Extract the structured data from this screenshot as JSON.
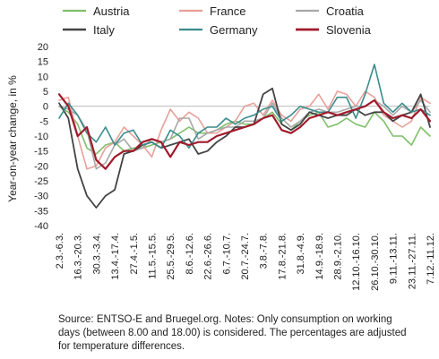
{
  "chart_data": {
    "type": "line",
    "ylabel": "Year-on-year change, in %",
    "ylim": [
      -40,
      20
    ],
    "yticks": [
      20,
      15,
      10,
      5,
      0,
      -5,
      -10,
      -15,
      -20,
      -25,
      -30,
      -35,
      -40
    ],
    "x": [
      "2.3.-6.3.",
      "9.3.-13.3.",
      "16.3.-20.3.",
      "23.3.-27.3.",
      "30.3.-3.4.",
      "6.4.-10.4.",
      "13.4.-17.4.",
      "20.4.-24.4.",
      "27.4.-1.5.",
      "4.5.-8.5.",
      "11.5.-15.5.",
      "18.5.-22.5.",
      "25.5.-29.5.",
      "1.6.-5.6.",
      "8.6.-12.6.",
      "15.6.-19.6.",
      "22.6.-26.6.",
      "29.6.-3.7.",
      "6.7.-10.7.",
      "13.7.-17.7.",
      "20.7.-24.7.",
      "27.7.-31.7.",
      "3.8.-7.8.",
      "10.8.-14.8.",
      "17.8.-21.8.",
      "24.8.-28.8.",
      "31.8.-4.9.",
      "7.9.-11.9.",
      "14.9.-18.9.",
      "21.9.-25.9.",
      "28.9.-2.10.",
      "5.10.-9.10.",
      "12.10.-16.10.",
      "19.10.-23.10.",
      "26.10.-30.10.",
      "2.11.-6.11.",
      "9.11.-13.11.",
      "16.11.-20.11.",
      "23.11.-27.11.",
      "30.11.-4.12.",
      "7.12.-11.12."
    ],
    "x_tick_labels": [
      "2.3.-6.3.",
      "16.3.-20.3.",
      "30.3.-3.4.",
      "13.4.-17.4.",
      "27.4.-1.5.",
      "11.5.-15.5.",
      "25.5.-29.5.",
      "8.6.-12.6.",
      "22.6.-26.6.",
      "6.7.-10.7.",
      "20.7.-24.7.",
      "3.8.-7.8.",
      "17.8.-21.8.",
      "31.8.-4.9.",
      "14.9.-18.9.",
      "28.9.-2.10.",
      "12.10.-16.10.",
      "26.10.-30.10.",
      "9.11.-13.11.",
      "23.11.-27.11.",
      "7.12.-11.12."
    ],
    "grid": false,
    "legend_position": "top",
    "series": [
      {
        "name": "Austria",
        "color": "#7fbf6a",
        "width": 1.6,
        "values": [
          0,
          -2,
          -6,
          -14,
          -16,
          -13,
          -12,
          -15,
          -14,
          -14,
          -13,
          -12,
          -11,
          -9,
          -7,
          -9,
          -9,
          -8,
          -6,
          -5,
          -6,
          -6,
          -4,
          -2,
          -6,
          -8,
          -5,
          -3,
          -2,
          -7,
          -6,
          -4,
          -6,
          -7,
          -2,
          -5,
          -10,
          -10,
          -13,
          -7,
          -10
        ]
      },
      {
        "name": "France",
        "color": "#e8a09a",
        "width": 1.6,
        "values": [
          2,
          3,
          -10,
          -21,
          -20,
          -14,
          -12,
          -7,
          -10,
          -13,
          -17,
          -8,
          -1,
          -5,
          -2,
          -4,
          -9,
          -9,
          -7,
          -5,
          0,
          1,
          -3,
          2,
          -3,
          -5,
          -1,
          0,
          4,
          -1,
          5,
          4,
          0,
          5,
          3,
          -3,
          -5,
          -7,
          -5,
          3,
          1
        ]
      },
      {
        "name": "Croatia",
        "color": "#a8a8a8",
        "width": 1.6,
        "values": [
          0,
          -1,
          -3,
          -8,
          -21,
          -19,
          -13,
          -11,
          -15,
          -14,
          -11,
          -12,
          -11,
          -4,
          -4,
          -11,
          -9,
          -8,
          -7,
          -7,
          -5,
          -5,
          -4,
          1,
          -4,
          -7,
          -5,
          -2,
          -1,
          -2,
          -2,
          -1,
          0,
          0,
          2,
          0,
          -3,
          0,
          -2,
          2,
          -2
        ]
      },
      {
        "name": "Italy",
        "color": "#444444",
        "width": 1.8,
        "values": [
          1,
          -4,
          -21,
          -30,
          -34,
          -30,
          -28,
          -16,
          -15,
          -13,
          -12,
          -14,
          -13,
          -12,
          -11,
          -16,
          -15,
          -12,
          -10,
          -7,
          -7,
          -6,
          4,
          6,
          -6,
          -8,
          -6,
          -2,
          -3,
          -4,
          -3,
          -3,
          -1,
          -3,
          -2,
          -2,
          -5,
          -3,
          -2,
          4,
          -7
        ]
      },
      {
        "name": "Germany",
        "color": "#3b8c8c",
        "width": 1.6,
        "values": [
          -4,
          1,
          -3,
          -9,
          -12,
          -7,
          -13,
          -9,
          -8,
          -13,
          -12,
          -14,
          -8,
          -10,
          -14,
          -9,
          -7,
          -7,
          -4,
          -6,
          -4,
          -3,
          -1,
          0,
          -5,
          -3,
          0,
          -1,
          -2,
          -2,
          3,
          3,
          -4,
          4,
          14,
          1,
          -2,
          1,
          -2,
          -1,
          -3
        ]
      },
      {
        "name": "Slovenia",
        "color": "#a01a2c",
        "width": 2.2,
        "values": [
          4,
          0,
          -10,
          -7,
          -18,
          -21,
          -17,
          -15,
          -15,
          -12,
          -11,
          -12,
          -17,
          -12,
          -13,
          -12,
          -12,
          -10,
          -9,
          -8,
          -7,
          -6,
          -4,
          -3,
          -8,
          -9,
          -7,
          -4,
          -3,
          -2,
          -3,
          -2,
          -1,
          0,
          2,
          -2,
          -4,
          -3,
          -4,
          -1,
          -5
        ]
      }
    ]
  },
  "source_note": "Source: ENTSO-E and Bruegel.org. Notes: Only consumption on working days (between 8.00 and 18.00) is considered. The percentages are adjusted for temperature differences."
}
